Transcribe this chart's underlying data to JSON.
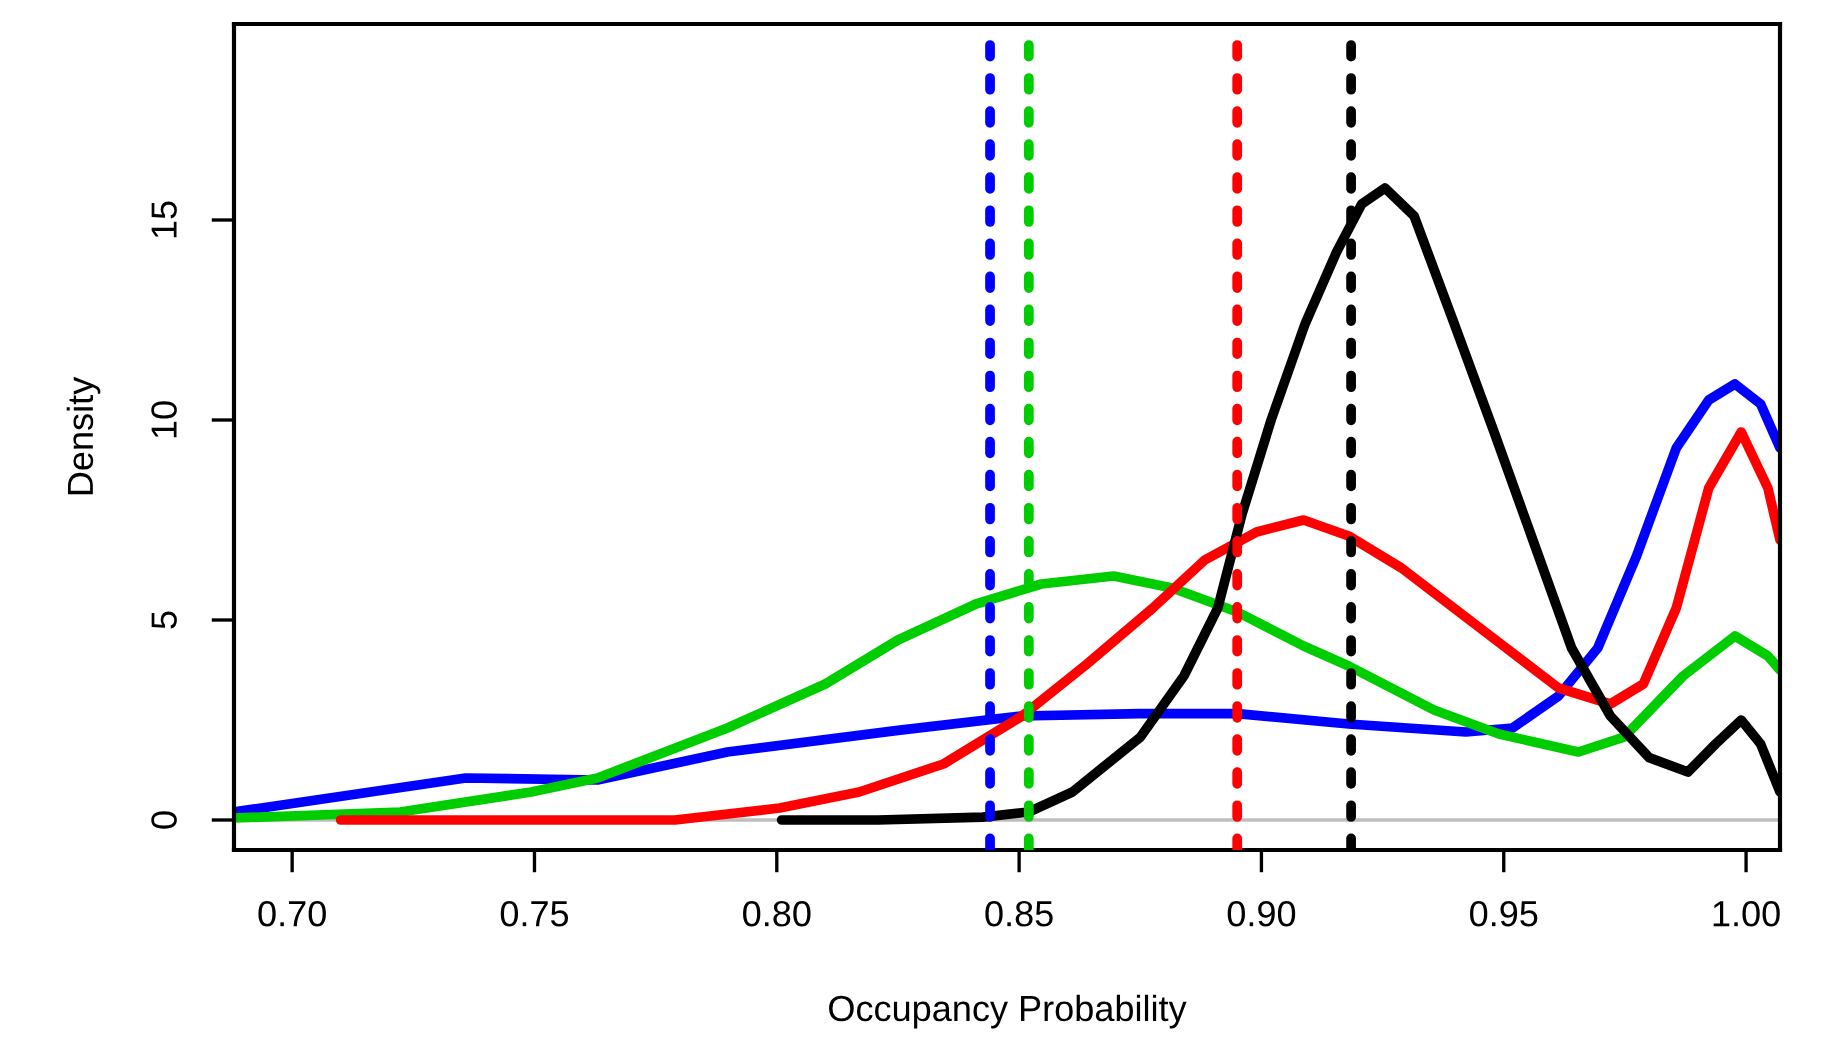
{
  "chart_data": {
    "type": "line",
    "xlabel": "Occupancy Probability",
    "ylabel": "Density",
    "xlim": [
      0.688,
      1.007
    ],
    "ylim": [
      -0.75,
      19.9
    ],
    "xticks": [
      {
        "value": 0.7,
        "label": "0.70"
      },
      {
        "value": 0.75,
        "label": "0.75"
      },
      {
        "value": 0.8,
        "label": "0.80"
      },
      {
        "value": 0.85,
        "label": "0.85"
      },
      {
        "value": 0.9,
        "label": "0.90"
      },
      {
        "value": 0.95,
        "label": "0.95"
      },
      {
        "value": 1.0,
        "label": "1.00"
      }
    ],
    "yticks": [
      0,
      5,
      10,
      15
    ],
    "grid": false,
    "legend": false,
    "marker": "none",
    "line_style": "solid",
    "series": [
      {
        "color": "#0000ff",
        "x": [
          0.688,
          0.7358,
          0.763,
          0.7898,
          0.825,
          0.8505,
          0.8748,
          0.895,
          0.918,
          0.9422,
          0.9518,
          0.9613,
          0.9694,
          0.9774,
          0.9856,
          0.9923,
          0.9977,
          1.003,
          1.007
        ],
        "values": [
          0.2,
          1.05,
          1.0,
          1.7,
          2.24,
          2.6,
          2.66,
          2.66,
          2.4,
          2.2,
          2.3,
          3.1,
          4.3,
          6.6,
          9.3,
          10.5,
          10.9,
          10.4,
          9.3
        ]
      },
      {
        "color": "#00cd00",
        "x": [
          0.688,
          0.7223,
          0.7493,
          0.763,
          0.7898,
          0.81,
          0.825,
          0.8411,
          0.8546,
          0.8695,
          0.8816,
          0.895,
          0.9087,
          0.918,
          0.9356,
          0.949,
          0.9654,
          0.9748,
          0.987,
          0.9977,
          1.0045,
          1.007
        ],
        "values": [
          0.05,
          0.2,
          0.7,
          1.05,
          2.3,
          3.4,
          4.5,
          5.4,
          5.9,
          6.1,
          5.8,
          5.2,
          4.35,
          3.85,
          2.75,
          2.15,
          1.7,
          2.07,
          3.6,
          4.6,
          4.1,
          3.75
        ]
      },
      {
        "color": "#ff0000",
        "x": [
          0.71,
          0.779,
          0.8006,
          0.817,
          0.8344,
          0.8506,
          0.864,
          0.8776,
          0.8883,
          0.899,
          0.9087,
          0.918,
          0.9289,
          0.9397,
          0.9505,
          0.9613,
          0.972,
          0.9788,
          0.9856,
          0.9923,
          0.999,
          1.0045,
          1.007
        ],
        "values": [
          0.0,
          0.0,
          0.3,
          0.7,
          1.4,
          2.6,
          3.9,
          5.3,
          6.5,
          7.2,
          7.5,
          7.1,
          6.3,
          5.3,
          4.3,
          3.3,
          2.9,
          3.4,
          5.3,
          8.3,
          9.7,
          8.3,
          7.0
        ]
      },
      {
        "color": "#000000",
        "x": [
          0.801,
          0.8209,
          0.8425,
          0.852,
          0.861,
          0.875,
          0.884,
          0.891,
          0.896,
          0.902,
          0.909,
          0.9155,
          0.9207,
          0.9255,
          0.9315,
          0.9398,
          0.948,
          0.956,
          0.964,
          0.972,
          0.98,
          0.988,
          0.9937,
          0.999,
          1.003,
          1.007
        ],
        "values": [
          0.0,
          0.0,
          0.07,
          0.2,
          0.7,
          2.07,
          3.6,
          5.3,
          7.65,
          10.0,
          12.4,
          14.2,
          15.4,
          15.8,
          15.1,
          12.4,
          9.7,
          7.0,
          4.3,
          2.6,
          1.56,
          1.2,
          1.9,
          2.5,
          1.9,
          0.7
        ]
      }
    ],
    "ref_lines": [
      {
        "axis": "y",
        "value": 0,
        "color": "#bebebe",
        "line_style": "solid"
      },
      {
        "axis": "x",
        "value": 0.844,
        "color": "#0000ff",
        "line_style": "dashed"
      },
      {
        "axis": "x",
        "value": 0.852,
        "color": "#00cd00",
        "line_style": "dashed"
      },
      {
        "axis": "x",
        "value": 0.895,
        "color": "#ff0000",
        "line_style": "dashed"
      },
      {
        "axis": "x",
        "value": 0.9185,
        "color": "#000000",
        "line_style": "dashed"
      }
    ]
  }
}
